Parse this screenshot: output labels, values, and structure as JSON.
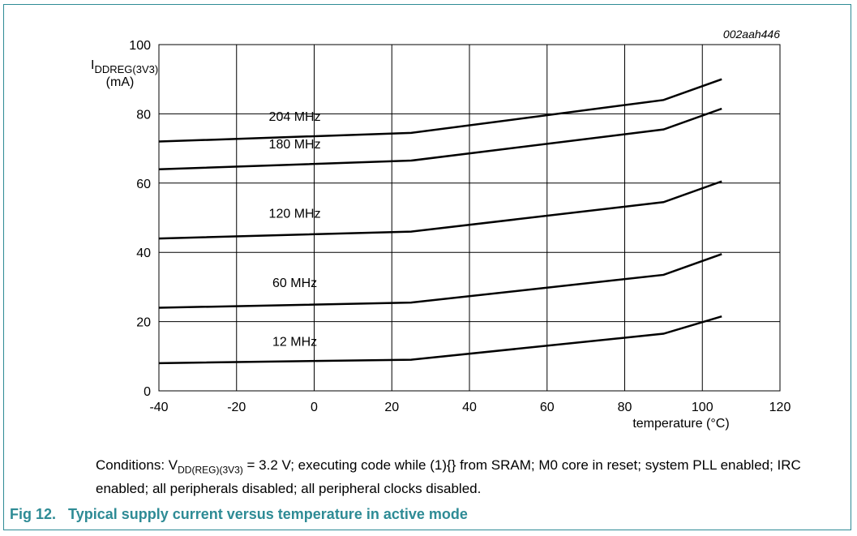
{
  "chart_data": {
    "type": "line",
    "figure_id": "002aah446",
    "ylabel": {
      "main": "I",
      "sub": "DDREG(3V3)",
      "unit": "(mA)"
    },
    "xlabel": "temperature (°C)",
    "xlim": [
      -40,
      120
    ],
    "ylim": [
      0,
      100
    ],
    "xticks": [
      -40,
      -20,
      0,
      20,
      40,
      60,
      80,
      100,
      120
    ],
    "yticks": [
      0,
      20,
      40,
      60,
      80,
      100
    ],
    "grid": true,
    "line_color": "#000000",
    "series": [
      {
        "name": "204 MHz",
        "x": [
          -40,
          25,
          90,
          105
        ],
        "y": [
          72,
          74.5,
          84,
          90
        ],
        "label_at": [
          -5,
          78
        ]
      },
      {
        "name": "180 MHz",
        "x": [
          -40,
          25,
          90,
          105
        ],
        "y": [
          64,
          66.5,
          75.5,
          81.5
        ],
        "label_at": [
          -5,
          70
        ]
      },
      {
        "name": "120 MHz",
        "x": [
          -40,
          25,
          90,
          105
        ],
        "y": [
          44,
          46,
          54.5,
          60.5
        ],
        "label_at": [
          -5,
          50
        ]
      },
      {
        "name": "60 MHz",
        "x": [
          -40,
          25,
          90,
          105
        ],
        "y": [
          24,
          25.5,
          33.5,
          39.5
        ],
        "label_at": [
          -5,
          30
        ]
      },
      {
        "name": "12 MHz",
        "x": [
          -40,
          25,
          90,
          105
        ],
        "y": [
          8,
          9,
          16.5,
          21.5
        ],
        "label_at": [
          -5,
          13
        ]
      }
    ]
  },
  "conditions": {
    "prefix": "Conditions: V",
    "sub": "DD(REG)(3V3)",
    "text": " = 3.2 V; executing code while (1){} from SRAM; M0 core in reset; system PLL enabled; IRC enabled; all peripherals disabled; all peripheral clocks disabled."
  },
  "caption": {
    "number": "Fig 12.",
    "title": "Typical supply current versus temperature in active mode"
  },
  "colors": {
    "accent": "#2e8b95",
    "grid": "#000000"
  }
}
